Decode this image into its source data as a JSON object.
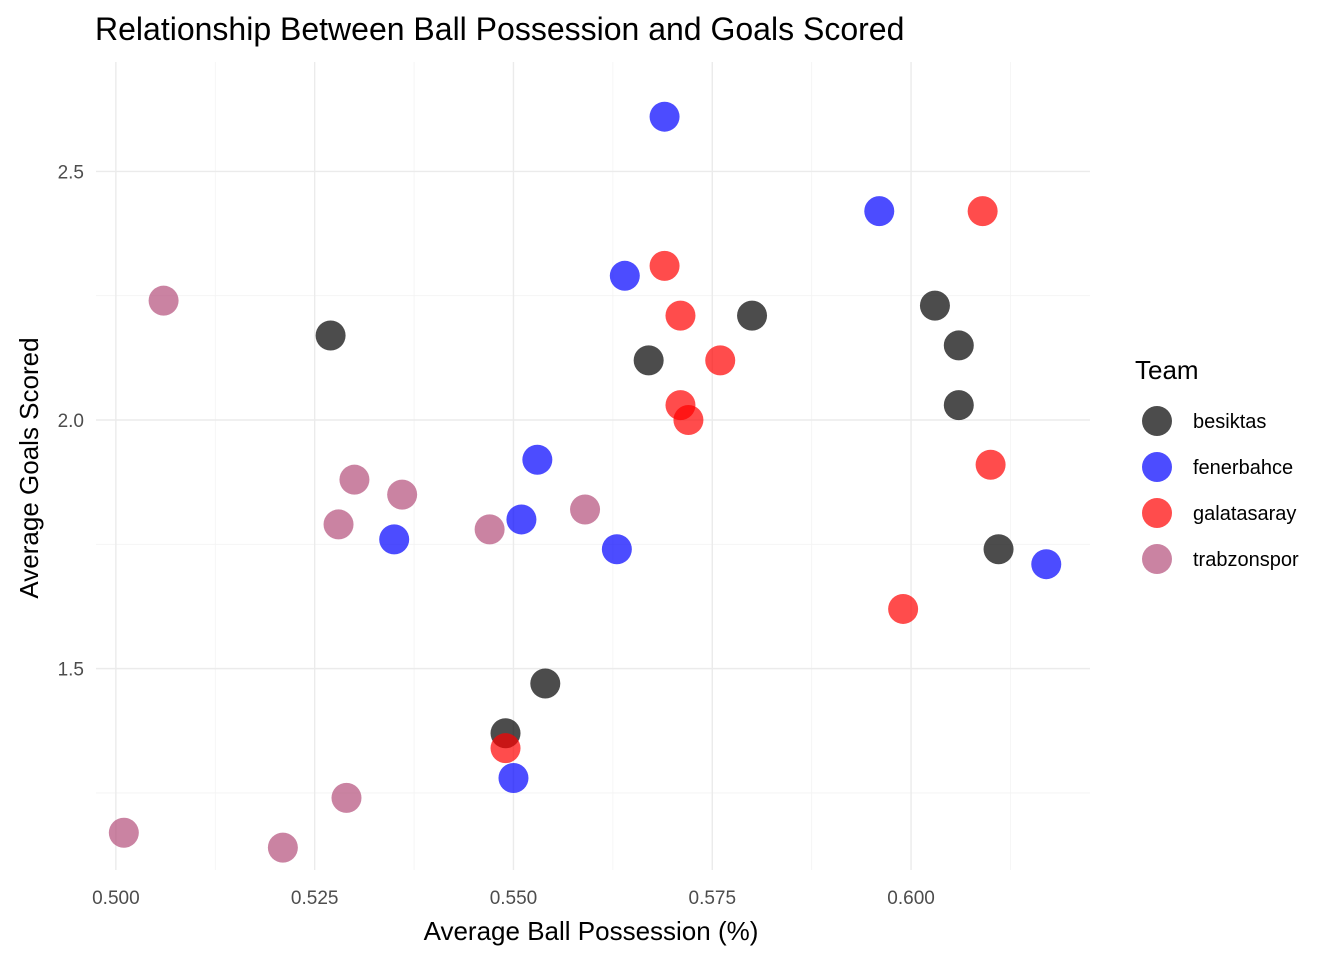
{
  "chart_data": {
    "type": "scatter",
    "title": "Relationship Between Ball Possession and Goals Scored",
    "xlabel": "Average Ball Possession (%)",
    "ylabel": "Average Goals Scored",
    "xlim": [
      0.4975,
      0.6225
    ],
    "ylim": [
      1.095,
      2.72
    ],
    "x_ticks": [
      0.5,
      0.525,
      0.55,
      0.575,
      0.6
    ],
    "x_tick_labels": [
      "0.500",
      "0.525",
      "0.550",
      "0.575",
      "0.600"
    ],
    "y_ticks": [
      1.5,
      2.0,
      2.5
    ],
    "y_tick_labels": [
      "1.5",
      "2.0",
      "2.5"
    ],
    "grid": true,
    "legend": {
      "title": "Team",
      "placement": "right"
    },
    "series": [
      {
        "name": "besiktas",
        "color": "#000000",
        "points": [
          {
            "x": 0.527,
            "y": 2.17
          },
          {
            "x": 0.567,
            "y": 2.12
          },
          {
            "x": 0.58,
            "y": 2.21
          },
          {
            "x": 0.603,
            "y": 2.23
          },
          {
            "x": 0.606,
            "y": 2.15
          },
          {
            "x": 0.606,
            "y": 2.03
          },
          {
            "x": 0.611,
            "y": 1.74
          },
          {
            "x": 0.554,
            "y": 1.47
          },
          {
            "x": 0.549,
            "y": 1.37
          }
        ]
      },
      {
        "name": "fenerbahce",
        "color": "#0000ff",
        "points": [
          {
            "x": 0.569,
            "y": 2.61
          },
          {
            "x": 0.596,
            "y": 2.42
          },
          {
            "x": 0.564,
            "y": 2.29
          },
          {
            "x": 0.553,
            "y": 1.92
          },
          {
            "x": 0.551,
            "y": 1.8
          },
          {
            "x": 0.535,
            "y": 1.76
          },
          {
            "x": 0.563,
            "y": 1.74
          },
          {
            "x": 0.617,
            "y": 1.71
          },
          {
            "x": 0.55,
            "y": 1.28
          }
        ]
      },
      {
        "name": "galatasaray",
        "color": "#ff0000",
        "points": [
          {
            "x": 0.609,
            "y": 2.42
          },
          {
            "x": 0.569,
            "y": 2.31
          },
          {
            "x": 0.571,
            "y": 2.21
          },
          {
            "x": 0.576,
            "y": 2.12
          },
          {
            "x": 0.571,
            "y": 2.03
          },
          {
            "x": 0.572,
            "y": 2.0
          },
          {
            "x": 0.61,
            "y": 1.91
          },
          {
            "x": 0.599,
            "y": 1.62
          },
          {
            "x": 0.549,
            "y": 1.34
          }
        ]
      },
      {
        "name": "trabzonspor",
        "color": "#b34e7a",
        "points": [
          {
            "x": 0.506,
            "y": 2.24
          },
          {
            "x": 0.53,
            "y": 1.88
          },
          {
            "x": 0.536,
            "y": 1.85
          },
          {
            "x": 0.559,
            "y": 1.82
          },
          {
            "x": 0.528,
            "y": 1.79
          },
          {
            "x": 0.547,
            "y": 1.78
          },
          {
            "x": 0.529,
            "y": 1.24
          },
          {
            "x": 0.501,
            "y": 1.17
          },
          {
            "x": 0.521,
            "y": 1.14
          }
        ]
      }
    ]
  }
}
